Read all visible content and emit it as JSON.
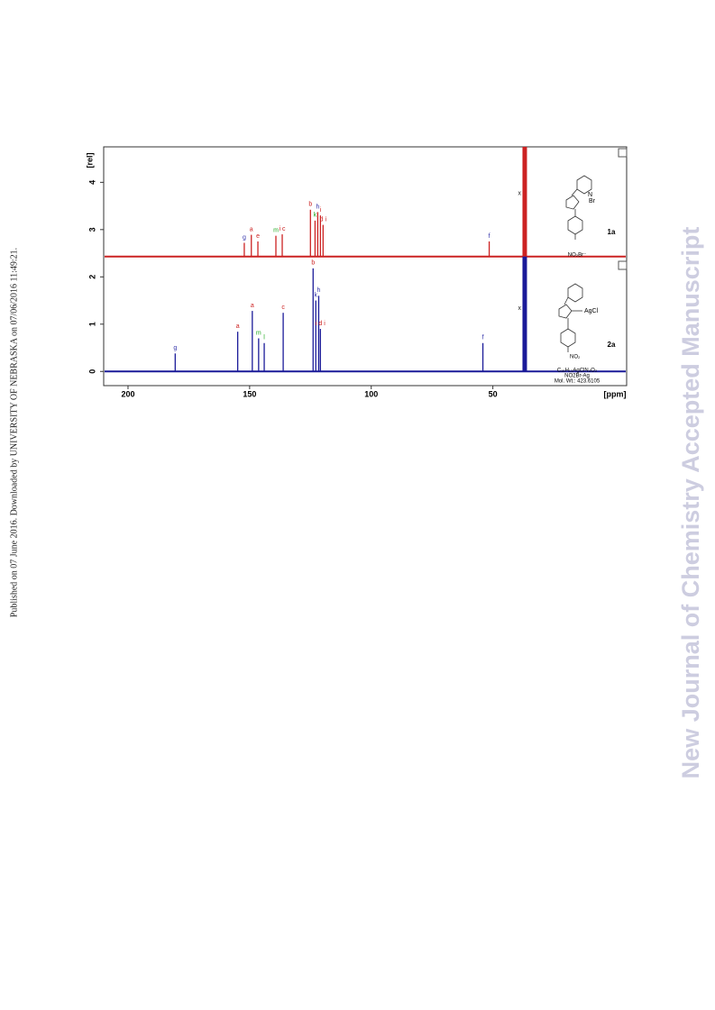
{
  "side_note": "Published on 07 June 2016. Downloaded by UNIVERSITY OF NEBRASKA on 07/06/2016 11:49:21.",
  "watermark": "New Journal of Chemistry Accepted Manuscript",
  "chart_data": {
    "type": "spectrum",
    "y_label": "[rel]",
    "x_label": "[ppm]",
    "xlim": [
      210,
      -5
    ],
    "ylim": [
      -0.3,
      4.75
    ],
    "xticks": [
      200,
      150,
      100,
      50
    ],
    "yticks": [
      0,
      1,
      2,
      3,
      4
    ],
    "series": [
      {
        "name": "1a",
        "color": "#cc2222",
        "offset": 2.43,
        "x": [
          152.2,
          149.3,
          146.6,
          139.2,
          136.6,
          125,
          123.1,
          122,
          120.9,
          119.8,
          51.5,
          36.9
        ],
        "values": [
          2.72,
          2.89,
          2.75,
          2.87,
          2.9,
          3.42,
          3.19,
          3.37,
          3.3,
          3.1,
          2.75,
          4.75
        ],
        "peak_labels": [
          "g",
          "a",
          "e",
          "m",
          "i c",
          "b",
          "k",
          "h",
          "i",
          "d i",
          "f",
          "x"
        ],
        "label_colors": [
          "#3333aa",
          "#cc2222",
          "#cc2222",
          "#22aa22",
          "#cc2222",
          "#cc2222",
          "#22aa22",
          "#3333aa",
          "#cc2222",
          "#cc2222",
          "#3333aa",
          "#222222"
        ],
        "formula": [
          "NO₂Br⁻"
        ]
      },
      {
        "name": "2a",
        "color": "#1a1a99",
        "offset": 0,
        "x": [
          180.6,
          154.9,
          148.9,
          146.3,
          144,
          136.2,
          123.9,
          122.8,
          121.6,
          120.9,
          54.1,
          36.9
        ],
        "values": [
          0.38,
          0.84,
          1.28,
          0.7,
          0.6,
          1.24,
          2.18,
          1.5,
          1.6,
          0.9,
          0.6,
          2.43
        ],
        "peak_labels": [
          "g",
          "a",
          "a",
          "m",
          "l",
          "c",
          "b",
          "k",
          "h",
          "i d i",
          "f",
          "x"
        ],
        "label_colors": [
          "#3333aa",
          "#cc2222",
          "#cc2222",
          "#22aa22",
          "#22aa22",
          "#cc2222",
          "#cc2222",
          "#3333aa",
          "#3333aa",
          "#cc2222",
          "#3333aa",
          "#222222"
        ],
        "formula": [
          "C₁₅H₁₃AgClN₄O₂",
          "NO2Br-Ag",
          "Mol. Wt.: 423.6105"
        ]
      }
    ]
  }
}
